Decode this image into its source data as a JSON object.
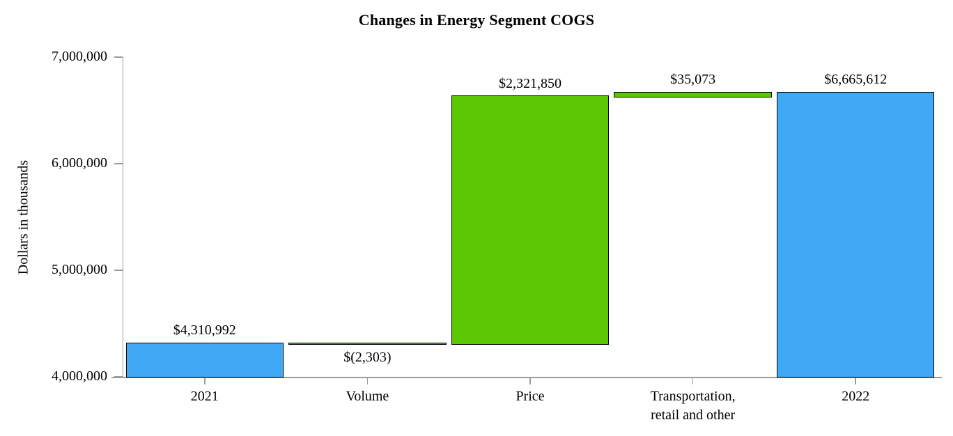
{
  "chart_data": {
    "type": "bar",
    "subtype": "waterfall",
    "title": "Changes in Energy Segment COGS",
    "ylabel": "Dollars in thousands",
    "xlabel": "",
    "ylim": [
      4000000,
      7000000
    ],
    "grid": false,
    "legend": false,
    "colors": {
      "total_bar": "#3FA9F5",
      "change_bar": "#5BC602",
      "bar_border": "#000000",
      "axis": "#9B9B9B"
    },
    "yticks": [
      {
        "value": 4000000,
        "label": "4,000,000"
      },
      {
        "value": 5000000,
        "label": "5,000,000"
      },
      {
        "value": 6000000,
        "label": "6,000,000"
      },
      {
        "value": 7000000,
        "label": "7,000,000"
      }
    ],
    "categories": [
      "2021",
      "Volume",
      "Price",
      "Transportation,\nretail and other",
      "2022"
    ],
    "bars": [
      {
        "category": "2021",
        "value": 4310992,
        "start": 4000000,
        "end": 4310992,
        "display_label": "$4,310,992",
        "label_position": "above",
        "color_key": "total_bar"
      },
      {
        "category": "Volume",
        "value": -2303,
        "start": 4310992,
        "end": 4308689,
        "display_label": "$(2,303)",
        "label_position": "below",
        "color_key": "change_bar"
      },
      {
        "category": "Price",
        "value": 2321850,
        "start": 4308689,
        "end": 6630539,
        "display_label": "$2,321,850",
        "label_position": "above",
        "color_key": "change_bar"
      },
      {
        "category": "Transportation,\nretail and other",
        "value": 35073,
        "start": 6630539,
        "end": 6665612,
        "display_label": "$35,073",
        "label_position": "above",
        "color_key": "change_bar"
      },
      {
        "category": "2022",
        "value": 6665612,
        "start": 4000000,
        "end": 6665612,
        "display_label": "$6,665,612",
        "label_position": "above",
        "color_key": "total_bar"
      }
    ]
  }
}
